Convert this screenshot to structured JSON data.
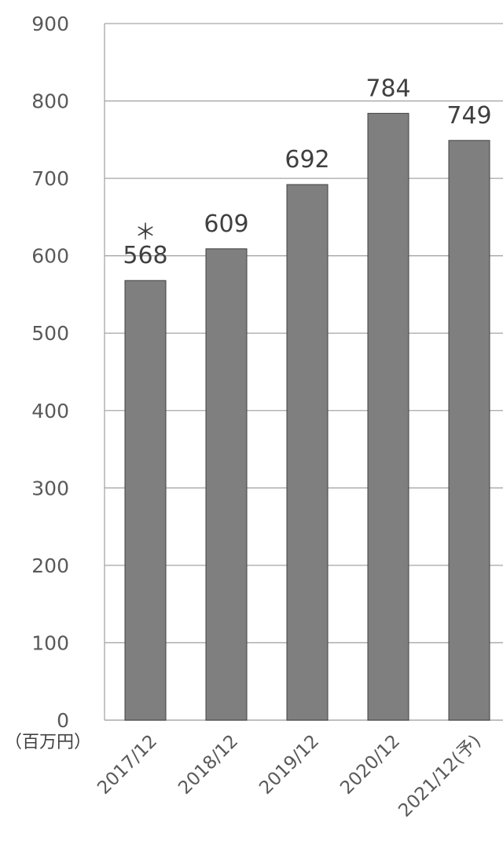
{
  "chart_data": {
    "type": "bar",
    "categories": [
      "2017/12",
      "2018/12",
      "2019/12",
      "2020/12",
      "2021/12(予)"
    ],
    "values": [
      568,
      609,
      692,
      784,
      749
    ],
    "data_labels": [
      "568",
      "609",
      "692",
      "784",
      "749"
    ],
    "ylim": [
      0,
      900
    ],
    "yticks": [
      "0",
      "100",
      "200",
      "300",
      "400",
      "500",
      "600",
      "700",
      "800",
      "900"
    ],
    "unit_label": "（百万円）",
    "annotation": "＊",
    "grid": true,
    "bar_color": "#7f7f7f"
  }
}
